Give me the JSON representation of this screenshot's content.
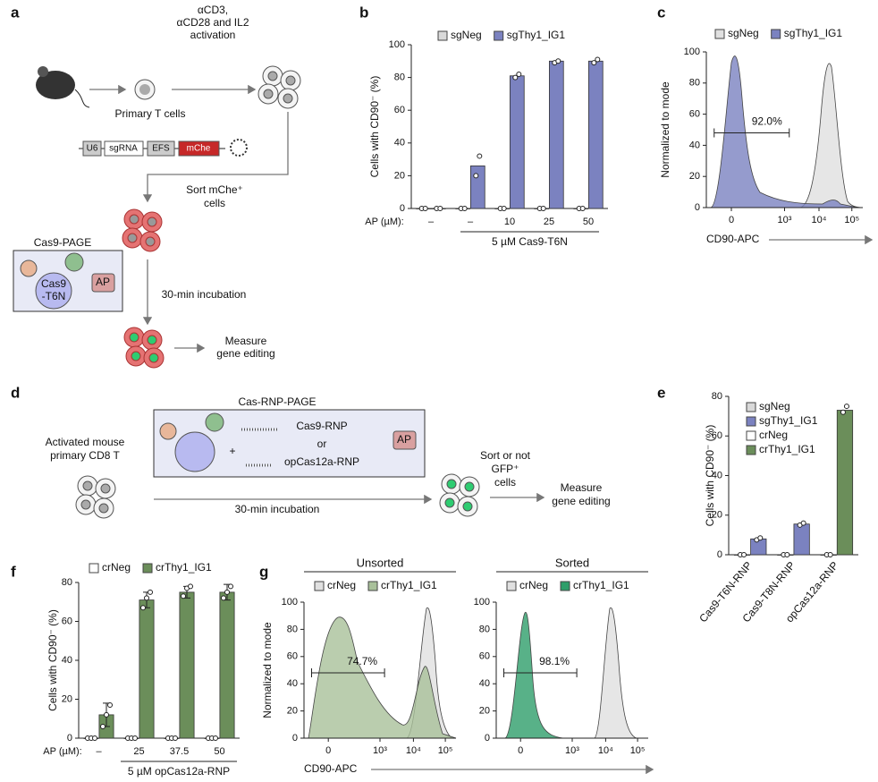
{
  "panel_labels": [
    "a",
    "b",
    "c",
    "d",
    "e",
    "f",
    "g"
  ],
  "panel_a": {
    "activation": [
      "αCD3,",
      "αCD28 and IL2",
      "activation"
    ],
    "primary": "Primary T cells",
    "construct": [
      "U6",
      "sgRNA",
      "EFS",
      "mChe"
    ],
    "sort": [
      "Sort mChe⁺",
      "cells"
    ],
    "box_title": "Cas9-PAGE",
    "cas9": [
      "Cas9",
      "-T6N"
    ],
    "ap": "AP",
    "incubation": "30-min incubation",
    "measure": [
      "Measure",
      "gene editing"
    ]
  },
  "panel_d": {
    "source": [
      "Activated mouse",
      "primary CD8 T"
    ],
    "box_title": "Cas-RNP-PAGE",
    "rnp": [
      "Cas9-RNP",
      "or",
      "opCas12a-RNP"
    ],
    "ap": "AP",
    "incubation": "30-min incubation",
    "sort": [
      "Sort or not",
      "GFP⁺",
      "cells"
    ],
    "measure": [
      "Measure",
      "gene editing"
    ]
  },
  "chart_data": [
    {
      "type": "bar",
      "ylabel": "Cells with CD90⁻ (%)",
      "xlabel": "AP (µM):",
      "group_label": "5 µM Cas9-T6N",
      "categories": [
        "–",
        "–",
        "10",
        "25",
        "50"
      ],
      "ylim": [
        0,
        100
      ],
      "yticks": [
        0,
        20,
        40,
        60,
        80,
        100
      ],
      "series": [
        {
          "name": "sgNeg",
          "color": "#d9d9d9",
          "values": [
            0,
            0,
            0,
            0,
            0
          ],
          "points": [
            [
              0,
              0
            ],
            [
              0,
              0
            ],
            [
              0,
              0
            ],
            [
              0,
              0
            ],
            [
              0,
              0
            ]
          ]
        },
        {
          "name": "sgThy1_IG1",
          "color": "#7b82c0",
          "values": [
            0,
            26,
            81,
            90,
            90
          ],
          "points": [
            [
              0,
              0
            ],
            [
              20,
              32
            ],
            [
              80,
              82
            ],
            [
              89,
              90
            ],
            [
              89,
              91
            ]
          ]
        }
      ]
    },
    {
      "type": "histogram",
      "ylabel": "Normalized to mode",
      "xlabel": "CD90-APC",
      "gate": "92.0%",
      "ylim": [
        0,
        100
      ],
      "yticks": [
        0,
        20,
        40,
        60,
        80,
        100
      ],
      "x_tick_labels": [
        "0",
        "10³",
        "10⁴",
        "10⁵"
      ],
      "series": [
        {
          "name": "sgNeg",
          "color": "#e0e0e0"
        },
        {
          "name": "sgThy1_IG1",
          "color": "#7b82c0"
        }
      ]
    },
    {
      "type": "bar",
      "ylabel": "Cells with CD90⁻ (%)",
      "rotate_labels": true,
      "categories": [
        "Cas9-T6N-RNP",
        "Cas9-T8N-RNP",
        "opCas12a-RNP"
      ],
      "ylim": [
        0,
        80
      ],
      "yticks": [
        0,
        20,
        40,
        60,
        80
      ],
      "series": [
        {
          "name": "sgNeg",
          "color": "#d9d9d9",
          "values": [
            0,
            0,
            null
          ],
          "points": [
            [
              0,
              0
            ],
            [
              0,
              0
            ],
            null
          ]
        },
        {
          "name": "sgThy1_IG1",
          "color": "#7b82c0",
          "values": [
            8,
            15.5,
            null
          ],
          "points": [
            [
              7.5,
              8.5
            ],
            [
              15,
              16
            ],
            null
          ]
        },
        {
          "name": "crNeg",
          "color": "#ffffff",
          "values": [
            null,
            null,
            0
          ],
          "points": [
            null,
            null,
            [
              0,
              0
            ]
          ]
        },
        {
          "name": "crThy1_IG1",
          "color": "#6b8e5a",
          "values": [
            null,
            null,
            73
          ],
          "points": [
            null,
            null,
            [
              72,
              75
            ]
          ]
        }
      ]
    },
    {
      "type": "bar",
      "ylabel": "Cells with CD90⁻ (%)",
      "xlabel": "AP (µM):",
      "group_label": "5 µM opCas12a-RNP",
      "categories": [
        "–",
        "25",
        "37.5",
        "50"
      ],
      "ylim": [
        0,
        80
      ],
      "yticks": [
        0,
        20,
        40,
        60,
        80
      ],
      "series": [
        {
          "name": "crNeg",
          "color": "#ffffff",
          "values": [
            0,
            0,
            0,
            0
          ],
          "points": [
            [
              0,
              0,
              0
            ],
            [
              0,
              0,
              0
            ],
            [
              0,
              0,
              0
            ],
            [
              0,
              0,
              0
            ]
          ]
        },
        {
          "name": "crThy1_IG1",
          "color": "#6b8e5a",
          "values": [
            12,
            71,
            75,
            75
          ],
          "errors": [
            6,
            4,
            3,
            4
          ],
          "points": [
            [
              6,
              12,
              17
            ],
            [
              67,
              72,
              75
            ],
            [
              73,
              77,
              78
            ],
            [
              72,
              75,
              78
            ]
          ]
        }
      ]
    },
    {
      "type": "histogram",
      "title": "Unsorted",
      "ylabel": "Normalized to mode",
      "xlabel": "CD90-APC",
      "gate": "74.7%",
      "ylim": [
        0,
        100
      ],
      "yticks": [
        0,
        20,
        40,
        60,
        80,
        100
      ],
      "x_tick_labels": [
        "0",
        "10³",
        "10⁴",
        "10⁵"
      ],
      "series": [
        {
          "name": "crNeg",
          "color": "#e0e0e0"
        },
        {
          "name": "crThy1_IG1",
          "color": "#a9c09a"
        }
      ]
    },
    {
      "type": "histogram",
      "title": "Sorted",
      "gate": "98.1%",
      "ylim": [
        0,
        100
      ],
      "yticks": [
        0,
        20,
        40,
        60,
        80,
        100
      ],
      "x_tick_labels": [
        "0",
        "10³",
        "10⁴",
        "10⁵"
      ],
      "series": [
        {
          "name": "crNeg",
          "color": "#e0e0e0"
        },
        {
          "name": "crThy1_IG1",
          "color": "#2e9e6a"
        }
      ]
    }
  ]
}
